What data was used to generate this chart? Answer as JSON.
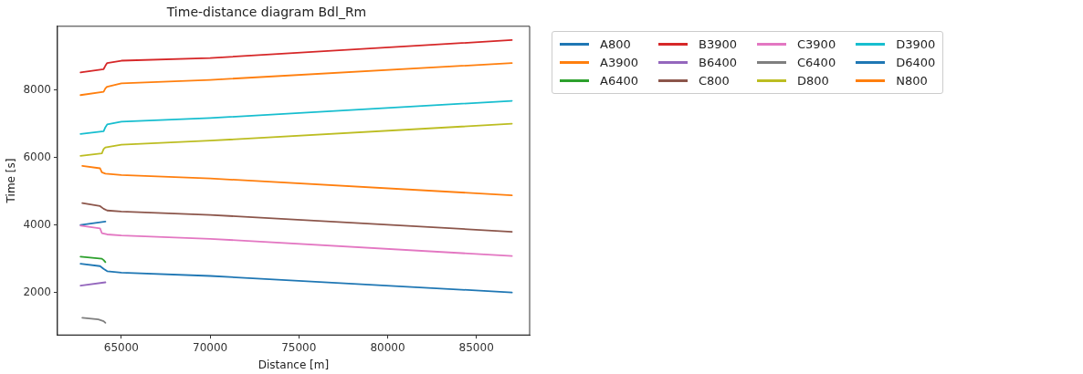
{
  "chart_data": {
    "type": "line",
    "title": "Time-distance diagram Bdl_Rm",
    "xlabel": "Distance [m]",
    "ylabel": "Time [s]",
    "xlim": [
      61400,
      88000
    ],
    "xticks": [
      65000,
      70000,
      75000,
      80000,
      85000
    ],
    "ylim": [
      740,
      9890
    ],
    "yticks": [
      2000,
      4000,
      6000,
      8000
    ],
    "grid": false,
    "legend": "right",
    "marker": "none",
    "line_style": "solid",
    "series": [
      {
        "name": "A800",
        "color": "#1f77b4",
        "x": [
          62700,
          63800,
          64000,
          64200,
          65000,
          70000,
          87000
        ],
        "values": [
          2850,
          2780,
          2700,
          2630,
          2590,
          2490,
          2000
        ]
      },
      {
        "name": "A3900",
        "color": "#ff7f0e",
        "x": [
          62700,
          64000,
          64100,
          64200,
          65000,
          70000,
          87000
        ],
        "values": [
          7850,
          7950,
          8050,
          8100,
          8200,
          8300,
          8800
        ]
      },
      {
        "name": "A6400",
        "color": "#2ca02c",
        "x": [
          62700,
          63900,
          64000,
          64100
        ],
        "values": [
          3060,
          3000,
          2960,
          2900
        ]
      },
      {
        "name": "B3900",
        "color": "#d62728",
        "x": [
          62700,
          64000,
          64100,
          64200,
          65000,
          70000,
          87000
        ],
        "values": [
          8520,
          8620,
          8720,
          8800,
          8870,
          8950,
          9480
        ]
      },
      {
        "name": "B6400",
        "color": "#9467bd",
        "x": [
          62700,
          64100
        ],
        "values": [
          2200,
          2300
        ]
      },
      {
        "name": "C800",
        "color": "#8c564b",
        "x": [
          62800,
          63800,
          64000,
          64200,
          65000,
          70000,
          87000
        ],
        "values": [
          4650,
          4560,
          4480,
          4430,
          4400,
          4300,
          3800
        ]
      },
      {
        "name": "C3900",
        "color": "#e377c2",
        "x": [
          62700,
          63800,
          63900,
          64200,
          65000,
          70000,
          87000
        ],
        "values": [
          3980,
          3900,
          3760,
          3720,
          3690,
          3590,
          3080
        ]
      },
      {
        "name": "C6400",
        "color": "#7f7f7f",
        "x": [
          62800,
          63700,
          64000,
          64100
        ],
        "values": [
          1250,
          1200,
          1150,
          1100
        ]
      },
      {
        "name": "D800",
        "color": "#bcbd22",
        "x": [
          62700,
          63900,
          64000,
          64100,
          65000,
          70000,
          87000
        ],
        "values": [
          6050,
          6120,
          6250,
          6300,
          6380,
          6500,
          7000
        ]
      },
      {
        "name": "D3900",
        "color": "#17becf",
        "x": [
          62700,
          64000,
          64100,
          64200,
          65000,
          70000,
          87000
        ],
        "values": [
          6700,
          6780,
          6900,
          6980,
          7060,
          7170,
          7680
        ]
      },
      {
        "name": "D6400",
        "color": "#1f77b4",
        "x": [
          62700,
          64100
        ],
        "values": [
          4000,
          4100
        ]
      },
      {
        "name": "N800",
        "color": "#ff7f0e",
        "x": [
          62800,
          63800,
          63900,
          64100,
          65000,
          70000,
          87000
        ],
        "values": [
          5750,
          5680,
          5560,
          5520,
          5480,
          5380,
          4880
        ]
      }
    ]
  }
}
